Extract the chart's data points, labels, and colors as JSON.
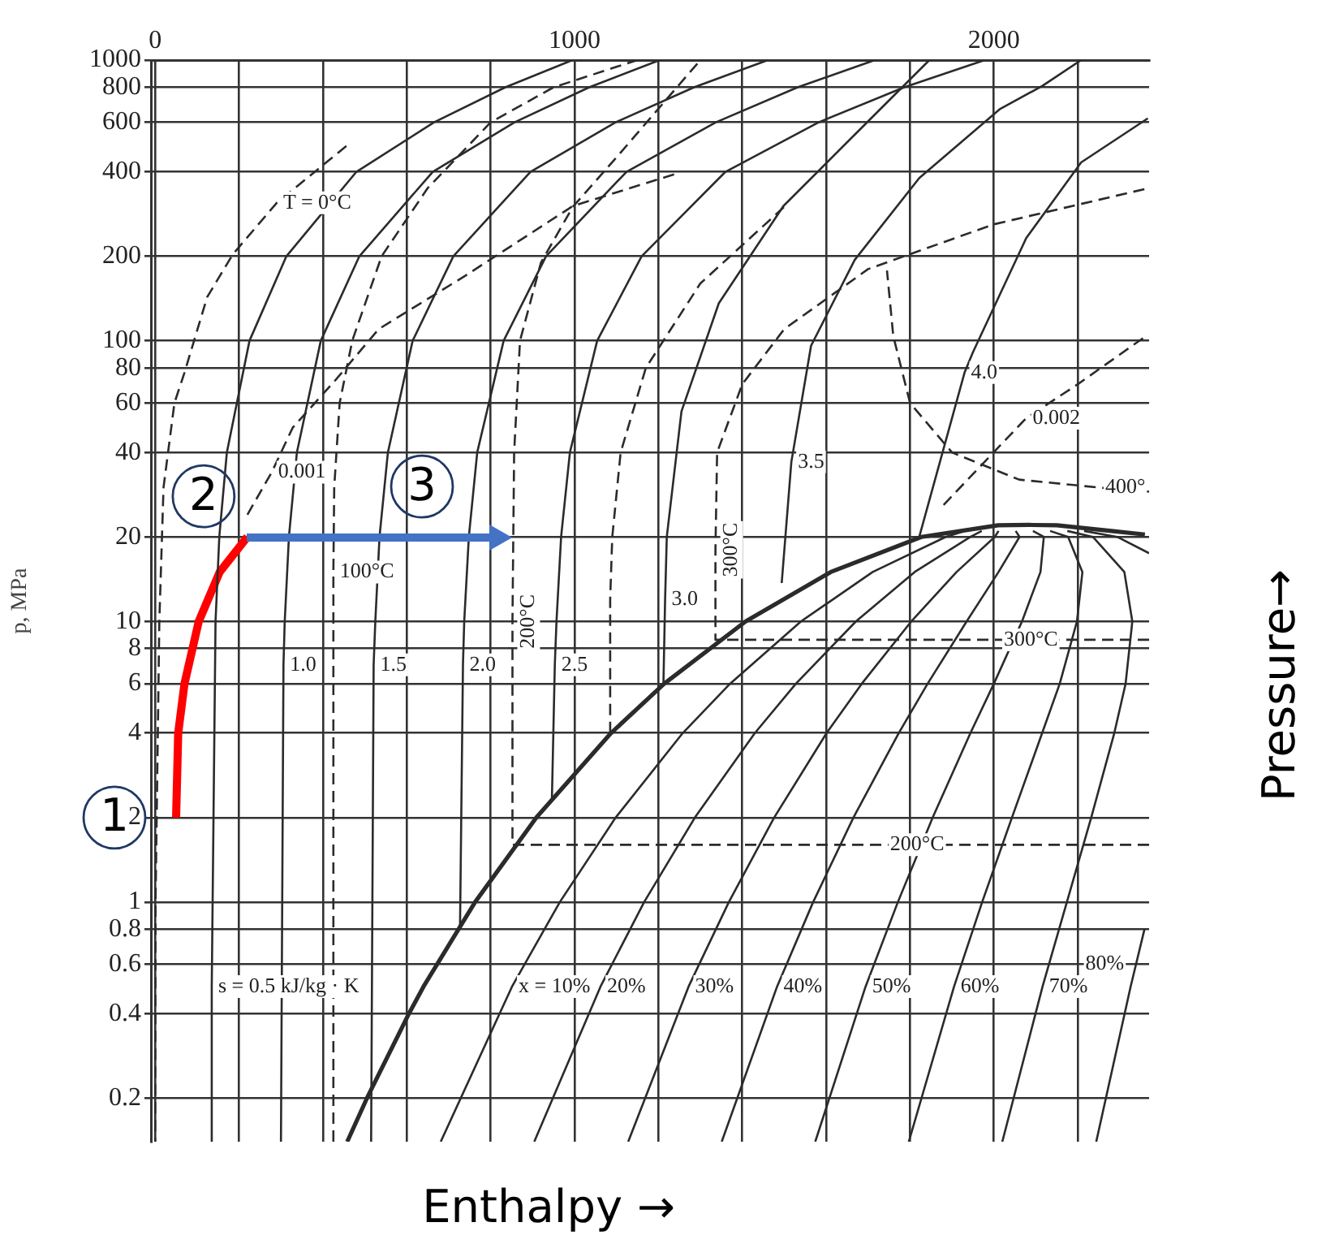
{
  "chart_data": {
    "type": "line",
    "xlabel": "Enthalpy →",
    "ylabel": "p, MPa",
    "y2label": "Pressure→",
    "log": "y",
    "grid": true,
    "legend": false,
    "xlim": [
      -10,
      2370
    ],
    "xticks": [
      0,
      {
        "value": 200,
        "label": null
      },
      {
        "value": 400,
        "label": null
      },
      {
        "value": 600,
        "label": null
      },
      {
        "value": 800,
        "label": null
      },
      1000,
      {
        "value": 1200,
        "label": null
      },
      {
        "value": 1400,
        "label": null
      },
      {
        "value": 1600,
        "label": null
      },
      {
        "value": 1800,
        "label": null
      },
      2000,
      {
        "value": 2200,
        "label": null
      }
    ],
    "ylim": [
      0.14,
      1000
    ],
    "yticks": [
      0.2,
      0.4,
      0.6,
      0.8,
      1,
      2,
      4,
      6,
      8,
      10,
      20,
      40,
      60,
      80,
      100,
      200,
      400,
      600,
      800,
      1000
    ],
    "annotations": [
      {
        "text": "1",
        "x": 50,
        "y": 2
      },
      {
        "text": "2",
        "x": 220,
        "y": 20
      },
      {
        "text": "3",
        "x": 853,
        "y": 20
      }
    ],
    "series": [
      {
        "color": "#2b2b2b",
        "x": [
          458,
          505,
          605,
          640,
          763,
          909,
          1087,
          1214,
          1408,
          1611,
          1827,
          2010,
          2084,
          2150,
          2280,
          2360
        ],
        "values": [
          0.14,
          0.2,
          0.4,
          0.5,
          1,
          2,
          4,
          6,
          10,
          15,
          20,
          22,
          22.064,
          22,
          21,
          20.4
        ]
      },
      {
        "name": "s = 0.5 kJ/kg · K",
        "color": "#2b2b2b",
        "x": [
          135,
          135,
          144,
          153,
          171,
          225,
          313,
          480,
          665,
          835,
          995
        ],
        "values": [
          0.14,
          0.5,
          10,
          20,
          40,
          100,
          200,
          400,
          600,
          800,
          1000
        ]
      },
      {
        "name": "1.0",
        "color": "#2b2b2b",
        "x": [
          300,
          306,
          309,
          319,
          338,
          395,
          487,
          662,
          857,
          1035,
          1203
        ],
        "values": [
          0.14,
          7,
          10,
          20,
          40,
          100,
          200,
          400,
          600,
          800,
          1000
        ]
      },
      {
        "name": "1.5",
        "color": "#2b2b2b",
        "x": [
          515,
          521,
          525,
          535,
          555,
          614,
          711,
          895,
          1098,
          1285,
          1461
        ],
        "values": [
          0.14,
          7,
          10,
          20,
          40,
          100,
          200,
          400,
          600,
          800,
          1000
        ]
      },
      {
        "name": "2.0",
        "color": "#2b2b2b",
        "x": [
          727,
          734,
          737,
          748,
          768,
          831,
          932,
          1124,
          1337,
          1532,
          1716
        ],
        "values": [
          0.82,
          7,
          10,
          20,
          40,
          100,
          200,
          400,
          600,
          800,
          1000
        ]
      },
      {
        "name": "2.5",
        "color": "#2b2b2b",
        "x": [
          946,
          953,
          957,
          968,
          989,
          1054,
          1160,
          1360,
          1582,
          1786,
          1978
        ],
        "values": [
          2.3,
          7,
          10,
          20,
          40,
          100,
          200,
          400,
          600,
          800,
          1000
        ]
      },
      {
        "name": "3.0",
        "color": "#2b2b2b",
        "x": [
          1212,
          1216,
          1220,
          1255,
          1344,
          1498,
          1691,
          1846
        ],
        "values": [
          6,
          12,
          20,
          56,
          136,
          302,
          587,
          1000
        ]
      },
      {
        "name": "3.5",
        "color": "#2b2b2b",
        "x": [
          1494,
          1517,
          1564,
          1668,
          1822,
          2015,
          2116,
          2208
        ],
        "values": [
          13.7,
          37,
          96,
          194,
          380,
          670,
          810,
          1000
        ]
      },
      {
        "name": "4.0",
        "color": "#2b2b2b",
        "x": [
          1822,
          1930,
          1950,
          2077,
          2208,
          2367
        ],
        "values": [
          20,
          77,
          91,
          232,
          432,
          620
        ]
      },
      {
        "name": "x = 10%",
        "color": "#2b2b2b",
        "x": [
          681,
          851,
          965,
          1098,
          1258,
          1371,
          1540,
          1711,
          1885,
          1930
        ],
        "values": [
          0.14,
          0.5,
          1,
          2,
          4,
          6,
          10,
          15,
          20,
          21
        ]
      },
      {
        "name": "20%",
        "color": "#2b2b2b",
        "x": [
          904,
          1062,
          1166,
          1287,
          1430,
          1528,
          1671,
          1811,
          1944,
          1971
        ],
        "values": [
          0.14,
          0.5,
          1,
          2,
          4,
          6,
          10,
          15,
          20,
          21
        ]
      },
      {
        "name": "30%",
        "color": "#2b2b2b",
        "x": [
          1128,
          1272,
          1368,
          1476,
          1601,
          1685,
          1803,
          1911,
          2002,
          2011
        ],
        "values": [
          0.14,
          0.5,
          1,
          2,
          4,
          6,
          10,
          15,
          20,
          21
        ]
      },
      {
        "name": "40%",
        "color": "#2b2b2b",
        "x": [
          1351,
          1483,
          1569,
          1665,
          1773,
          1842,
          1935,
          2011,
          2061,
          2052
        ],
        "values": [
          0.14,
          0.5,
          1,
          2,
          4,
          6,
          10,
          15,
          20,
          21
        ]
      },
      {
        "name": "50%",
        "color": "#2b2b2b",
        "x": [
          1574,
          1694,
          1771,
          1854,
          1944,
          2000,
          2067,
          2111,
          2119,
          2093
        ],
        "values": [
          0.14,
          0.5,
          1,
          2,
          4,
          6,
          10,
          15,
          20,
          21
        ]
      },
      {
        "name": "60%",
        "color": "#2b2b2b",
        "x": [
          1797,
          1905,
          1972,
          2043,
          2115,
          2157,
          2198,
          2211,
          2177,
          2134
        ],
        "values": [
          0.14,
          0.5,
          1,
          2,
          4,
          6,
          10,
          15,
          20,
          21
        ]
      },
      {
        "name": "70%",
        "color": "#2b2b2b",
        "x": [
          2020,
          2116,
          2174,
          2232,
          2287,
          2314,
          2330,
          2311,
          2236,
          2175
        ],
        "values": [
          0.14,
          0.5,
          1,
          2,
          4,
          6,
          10,
          15,
          20,
          21
        ]
      },
      {
        "name": "80%",
        "color": "#2b2b2b",
        "x": [
          2244,
          2326,
          2359,
          2360,
          2370,
          2294,
          2215
        ],
        "values": [
          0.14,
          0.5,
          0.8,
          null,
          17.5,
          20,
          21
        ]
      },
      {
        "name": "T = 0°C",
        "color": "#2b2b2b",
        "line_style": "dashed",
        "x": [
          456,
          290,
          185,
          124,
          70,
          46,
          20,
          10,
          1,
          0
        ],
        "values": [
          494,
          310,
          203,
          143,
          77,
          60,
          30,
          10,
          1,
          0.14
        ]
      },
      {
        "name": "100°C",
        "color": "#2b2b2b",
        "line_style": "dashed",
        "x": [
          425,
          425,
          427,
          440,
          470,
          540,
          650,
          800,
          950,
          1150
        ],
        "values": [
          0.14,
          15,
          30,
          60,
          100,
          200,
          350,
          600,
          800,
          1000
        ]
      },
      {
        "name": "200°C",
        "color": "#2b2b2b",
        "line_style": "dashed",
        "x": [
          2370,
          1737,
          852,
          852,
          856,
          870,
          920,
          996,
          1100,
          1300
        ],
        "values": [
          1.6,
          1.6,
          1.6,
          10,
          40,
          100,
          190,
          300,
          450,
          1000
        ]
      },
      {
        "name": "300°C",
        "color": "#2b2b2b",
        "line_style": "dashed",
        "x": [
          2370,
          2008,
          1336,
          1336,
          1340,
          1400,
          1500,
          1700,
          2000,
          2370
        ],
        "values": [
          8.6,
          8.6,
          8.6,
          18,
          40,
          70,
          110,
          180,
          260,
          350
        ]
      },
      {
        "name": "400°",
        "color": "#2b2b2b",
        "line_style": "dashed",
        "x": [
          2370,
          2250,
          2060,
          1900,
          1800,
          1760,
          1745
        ],
        "values": [
          29,
          30,
          32,
          40,
          60,
          104,
          178
        ]
      },
      {
        "color": "#2b2b2b",
        "line_style": "dashed",
        "x": [
          1085,
          1085,
          1090,
          1110,
          1170,
          1300,
          1500
        ],
        "values": [
          4,
          12,
          20,
          40,
          80,
          160,
          300
        ]
      },
      {
        "name": "0.001",
        "color": "#2b2b2b",
        "line_style": "dashed",
        "x": [
          220,
          278,
          328,
          432,
          533,
          741,
          996,
          1243
        ],
        "values": [
          24,
          34,
          49,
          73,
          110,
          171,
          302,
          394
        ]
      },
      {
        "name": "0.002",
        "color": "#2b2b2b",
        "line_style": "dashed",
        "x": [
          1880,
          2077,
          2200,
          2363
        ],
        "values": [
          26,
          53,
          70,
          104
        ]
      },
      {
        "color": "#ff0000",
        "x": [
          50,
          55,
          70,
          104,
          154,
          220
        ],
        "values": [
          2,
          4,
          6,
          10,
          15,
          20
        ]
      }
    ]
  }
}
